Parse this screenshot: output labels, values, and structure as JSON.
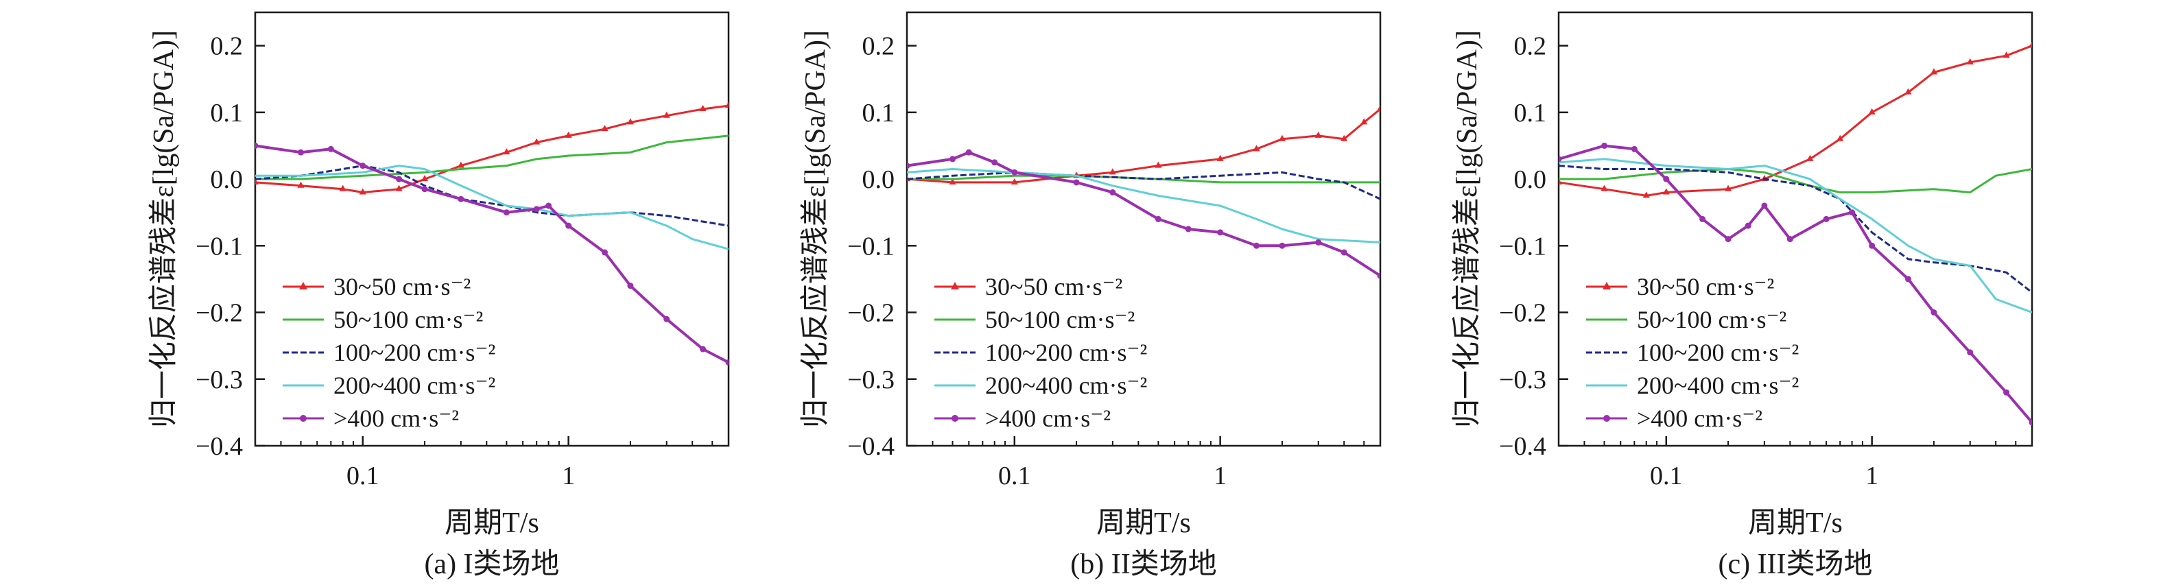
{
  "figure": {
    "x_axis_title": "周期T/s",
    "y_axis_title": "归一化反应谱残差ε[lg(Sa/PGA)]"
  },
  "series_meta": [
    {
      "name": "30~50 cm·s⁻²",
      "color": "#e8262a",
      "marker": "triangle"
    },
    {
      "name": "50~100 cm·s⁻²",
      "color": "#3db83a",
      "marker": "none"
    },
    {
      "name": "100~200 cm·s⁻²",
      "color": "#1f2a8a",
      "marker": "dash"
    },
    {
      "name": "200~400 cm·s⁻²",
      "color": "#5fcfd6",
      "marker": "none"
    },
    {
      "name": ">400 cm·s⁻²",
      "color": "#9b2fae",
      "marker": "dot"
    }
  ],
  "chart_data": [
    {
      "type": "line",
      "caption": "(a) I类场地",
      "xlabel": "周期T/s",
      "ylabel": "归一化反应谱残差ε[lg(Sa/PGA)]",
      "x_scale": "log",
      "xlim": [
        0.03,
        6
      ],
      "ylim": [
        -0.4,
        0.25
      ],
      "x_ticks": [
        0.1,
        1
      ],
      "y_ticks": [
        -0.4,
        -0.3,
        -0.2,
        -0.1,
        0.0,
        0.1,
        0.2
      ],
      "y_tick_labels": [
        "−0.4",
        "−0.3",
        "−0.2",
        "−0.1",
        "0.0",
        "0.1",
        "0.2"
      ],
      "legend": "bottom-left",
      "series": [
        {
          "name": "30~50 cm·s⁻²",
          "points": [
            [
              0.03,
              -0.005
            ],
            [
              0.05,
              -0.01
            ],
            [
              0.08,
              -0.015
            ],
            [
              0.1,
              -0.02
            ],
            [
              0.15,
              -0.015
            ],
            [
              0.2,
              0.0
            ],
            [
              0.3,
              0.02
            ],
            [
              0.5,
              0.04
            ],
            [
              0.7,
              0.055
            ],
            [
              1.0,
              0.065
            ],
            [
              1.5,
              0.075
            ],
            [
              2.0,
              0.085
            ],
            [
              3.0,
              0.095
            ],
            [
              4.5,
              0.105
            ],
            [
              6.0,
              0.11
            ]
          ]
        },
        {
          "name": "50~100 cm·s⁻²",
          "points": [
            [
              0.03,
              0.0
            ],
            [
              0.05,
              0.0
            ],
            [
              0.1,
              0.005
            ],
            [
              0.2,
              0.01
            ],
            [
              0.3,
              0.015
            ],
            [
              0.5,
              0.02
            ],
            [
              0.7,
              0.03
            ],
            [
              1.0,
              0.035
            ],
            [
              2.0,
              0.04
            ],
            [
              3.0,
              0.055
            ],
            [
              6.0,
              0.065
            ]
          ]
        },
        {
          "name": "100~200 cm·s⁻²",
          "points": [
            [
              0.03,
              0.0
            ],
            [
              0.05,
              0.005
            ],
            [
              0.08,
              0.015
            ],
            [
              0.1,
              0.02
            ],
            [
              0.15,
              0.01
            ],
            [
              0.2,
              -0.01
            ],
            [
              0.3,
              -0.03
            ],
            [
              0.5,
              -0.04
            ],
            [
              0.7,
              -0.05
            ],
            [
              1.0,
              -0.055
            ],
            [
              2.0,
              -0.05
            ],
            [
              3.0,
              -0.055
            ],
            [
              6.0,
              -0.07
            ]
          ]
        },
        {
          "name": "200~400 cm·s⁻²",
          "points": [
            [
              0.03,
              0.005
            ],
            [
              0.05,
              0.005
            ],
            [
              0.1,
              0.01
            ],
            [
              0.15,
              0.02
            ],
            [
              0.2,
              0.015
            ],
            [
              0.3,
              -0.01
            ],
            [
              0.5,
              -0.04
            ],
            [
              0.7,
              -0.045
            ],
            [
              1.0,
              -0.055
            ],
            [
              2.0,
              -0.05
            ],
            [
              3.0,
              -0.07
            ],
            [
              4.0,
              -0.09
            ],
            [
              6.0,
              -0.105
            ]
          ]
        },
        {
          "name": ">400 cm·s⁻²",
          "points": [
            [
              0.03,
              0.05
            ],
            [
              0.05,
              0.04
            ],
            [
              0.07,
              0.045
            ],
            [
              0.1,
              0.02
            ],
            [
              0.15,
              0.0
            ],
            [
              0.2,
              -0.015
            ],
            [
              0.3,
              -0.03
            ],
            [
              0.5,
              -0.05
            ],
            [
              0.7,
              -0.045
            ],
            [
              0.8,
              -0.04
            ],
            [
              1.0,
              -0.07
            ],
            [
              1.5,
              -0.11
            ],
            [
              2.0,
              -0.16
            ],
            [
              3.0,
              -0.21
            ],
            [
              4.5,
              -0.255
            ],
            [
              6.0,
              -0.275
            ]
          ]
        }
      ]
    },
    {
      "type": "line",
      "caption": "(b) II类场地",
      "xlabel": "周期T/s",
      "ylabel": "归一化反应谱残差ε[lg(Sa/PGA)]",
      "x_scale": "log",
      "xlim": [
        0.03,
        6
      ],
      "ylim": [
        -0.4,
        0.25
      ],
      "x_ticks": [
        0.1,
        1
      ],
      "y_ticks": [
        -0.4,
        -0.3,
        -0.2,
        -0.1,
        0.0,
        0.1,
        0.2
      ],
      "y_tick_labels": [
        "−0.4",
        "−0.3",
        "−0.2",
        "−0.1",
        "0.0",
        "0.1",
        "0.2"
      ],
      "legend": "bottom-left",
      "series": [
        {
          "name": "30~50 cm·s⁻²",
          "points": [
            [
              0.03,
              0.0
            ],
            [
              0.05,
              -0.005
            ],
            [
              0.1,
              -0.005
            ],
            [
              0.2,
              0.005
            ],
            [
              0.3,
              0.01
            ],
            [
              0.5,
              0.02
            ],
            [
              1.0,
              0.03
            ],
            [
              1.5,
              0.045
            ],
            [
              2.0,
              0.06
            ],
            [
              3.0,
              0.065
            ],
            [
              4.0,
              0.06
            ],
            [
              5.0,
              0.085
            ],
            [
              6.0,
              0.105
            ]
          ]
        },
        {
          "name": "50~100 cm·s⁻²",
          "points": [
            [
              0.03,
              0.0
            ],
            [
              0.05,
              0.0
            ],
            [
              0.1,
              0.005
            ],
            [
              0.2,
              0.005
            ],
            [
              0.5,
              0.0
            ],
            [
              1.0,
              -0.005
            ],
            [
              2.0,
              -0.005
            ],
            [
              4.0,
              -0.005
            ],
            [
              6.0,
              -0.005
            ]
          ]
        },
        {
          "name": "100~200 cm·s⁻²",
          "points": [
            [
              0.03,
              0.0
            ],
            [
              0.05,
              0.005
            ],
            [
              0.1,
              0.01
            ],
            [
              0.2,
              0.005
            ],
            [
              0.5,
              0.0
            ],
            [
              1.0,
              0.005
            ],
            [
              2.0,
              0.01
            ],
            [
              3.0,
              0.0
            ],
            [
              4.0,
              -0.005
            ],
            [
              6.0,
              -0.03
            ]
          ]
        },
        {
          "name": "200~400 cm·s⁻²",
          "points": [
            [
              0.03,
              0.01
            ],
            [
              0.05,
              0.015
            ],
            [
              0.1,
              0.01
            ],
            [
              0.2,
              0.005
            ],
            [
              0.3,
              -0.01
            ],
            [
              0.5,
              -0.025
            ],
            [
              1.0,
              -0.04
            ],
            [
              1.5,
              -0.06
            ],
            [
              2.0,
              -0.075
            ],
            [
              3.0,
              -0.09
            ],
            [
              6.0,
              -0.095
            ]
          ]
        },
        {
          "name": ">400 cm·s⁻²",
          "points": [
            [
              0.03,
              0.02
            ],
            [
              0.05,
              0.03
            ],
            [
              0.06,
              0.04
            ],
            [
              0.08,
              0.025
            ],
            [
              0.1,
              0.01
            ],
            [
              0.2,
              -0.005
            ],
            [
              0.3,
              -0.02
            ],
            [
              0.5,
              -0.06
            ],
            [
              0.7,
              -0.075
            ],
            [
              1.0,
              -0.08
            ],
            [
              1.5,
              -0.1
            ],
            [
              2.0,
              -0.1
            ],
            [
              3.0,
              -0.095
            ],
            [
              4.0,
              -0.11
            ],
            [
              6.0,
              -0.145
            ]
          ]
        }
      ]
    },
    {
      "type": "line",
      "caption": "(c) III类场地",
      "xlabel": "周期T/s",
      "ylabel": "归一化反应谱残差ε[lg(Sa/PGA)]",
      "x_scale": "log",
      "xlim": [
        0.03,
        6
      ],
      "ylim": [
        -0.4,
        0.25
      ],
      "x_ticks": [
        0.1,
        1
      ],
      "y_ticks": [
        -0.4,
        -0.3,
        -0.2,
        -0.1,
        0.0,
        0.1,
        0.2
      ],
      "y_tick_labels": [
        "−0.4",
        "−0.3",
        "−0.2",
        "−0.1",
        "0.0",
        "0.1",
        "0.2"
      ],
      "legend": "bottom-left",
      "series": [
        {
          "name": "30~50 cm·s⁻²",
          "points": [
            [
              0.03,
              -0.005
            ],
            [
              0.05,
              -0.015
            ],
            [
              0.08,
              -0.025
            ],
            [
              0.1,
              -0.02
            ],
            [
              0.2,
              -0.015
            ],
            [
              0.3,
              0.0
            ],
            [
              0.5,
              0.03
            ],
            [
              0.7,
              0.06
            ],
            [
              1.0,
              0.1
            ],
            [
              1.5,
              0.13
            ],
            [
              2.0,
              0.16
            ],
            [
              3.0,
              0.175
            ],
            [
              4.5,
              0.185
            ],
            [
              6.0,
              0.2
            ]
          ]
        },
        {
          "name": "50~100 cm·s⁻²",
          "points": [
            [
              0.03,
              0.0
            ],
            [
              0.05,
              0.0
            ],
            [
              0.1,
              0.01
            ],
            [
              0.2,
              0.015
            ],
            [
              0.3,
              0.01
            ],
            [
              0.5,
              -0.01
            ],
            [
              0.7,
              -0.02
            ],
            [
              1.0,
              -0.02
            ],
            [
              2.0,
              -0.015
            ],
            [
              3.0,
              -0.02
            ],
            [
              4.0,
              0.005
            ],
            [
              6.0,
              0.015
            ]
          ]
        },
        {
          "name": "100~200 cm·s⁻²",
          "points": [
            [
              0.03,
              0.02
            ],
            [
              0.05,
              0.015
            ],
            [
              0.1,
              0.015
            ],
            [
              0.2,
              0.01
            ],
            [
              0.3,
              0.0
            ],
            [
              0.5,
              -0.01
            ],
            [
              0.7,
              -0.03
            ],
            [
              1.0,
              -0.08
            ],
            [
              1.5,
              -0.12
            ],
            [
              2.0,
              -0.125
            ],
            [
              3.0,
              -0.13
            ],
            [
              4.5,
              -0.14
            ],
            [
              6.0,
              -0.17
            ]
          ]
        },
        {
          "name": "200~400 cm·s⁻²",
          "points": [
            [
              0.03,
              0.025
            ],
            [
              0.05,
              0.03
            ],
            [
              0.07,
              0.025
            ],
            [
              0.1,
              0.02
            ],
            [
              0.2,
              0.015
            ],
            [
              0.3,
              0.02
            ],
            [
              0.5,
              0.0
            ],
            [
              0.7,
              -0.03
            ],
            [
              1.0,
              -0.06
            ],
            [
              1.5,
              -0.1
            ],
            [
              2.0,
              -0.12
            ],
            [
              3.0,
              -0.13
            ],
            [
              4.0,
              -0.18
            ],
            [
              6.0,
              -0.2
            ]
          ]
        },
        {
          "name": ">400 cm·s⁻²",
          "points": [
            [
              0.03,
              0.03
            ],
            [
              0.05,
              0.05
            ],
            [
              0.07,
              0.045
            ],
            [
              0.1,
              0.0
            ],
            [
              0.15,
              -0.06
            ],
            [
              0.2,
              -0.09
            ],
            [
              0.25,
              -0.07
            ],
            [
              0.3,
              -0.04
            ],
            [
              0.4,
              -0.09
            ],
            [
              0.6,
              -0.06
            ],
            [
              0.8,
              -0.05
            ],
            [
              1.0,
              -0.1
            ],
            [
              1.5,
              -0.15
            ],
            [
              2.0,
              -0.2
            ],
            [
              3.0,
              -0.26
            ],
            [
              4.5,
              -0.32
            ],
            [
              6.0,
              -0.365
            ]
          ]
        }
      ]
    }
  ]
}
